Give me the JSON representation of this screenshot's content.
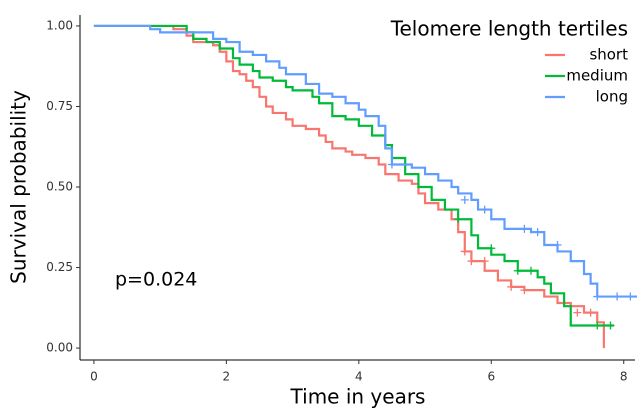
{
  "chart_data": {
    "type": "step",
    "xlabel": "Time in years",
    "ylabel": "Survival probability",
    "legend_title": "Telomere length tertiles",
    "legend_position": "top-right",
    "annotation": "p=0.024",
    "xlim": [
      -0.21,
      8.17
    ],
    "ylim": [
      -0.037,
      1.034
    ],
    "xticks": [
      0,
      2,
      4,
      6,
      8
    ],
    "yticks": [
      {
        "value": 0,
        "label": "0.00"
      },
      {
        "value": 0.25,
        "label": "0.25"
      },
      {
        "value": 0.5,
        "label": "0.50"
      },
      {
        "value": 0.75,
        "label": "0.75"
      },
      {
        "value": 1,
        "label": "1.00"
      }
    ],
    "series": [
      {
        "name": "short",
        "color": "#F8766D",
        "x": [
          0,
          1.2,
          1.4,
          1.5,
          1.8,
          1.9,
          2.0,
          2.1,
          2.2,
          2.3,
          2.4,
          2.5,
          2.6,
          2.7,
          2.9,
          3.0,
          3.2,
          3.4,
          3.5,
          3.6,
          3.8,
          3.9,
          4.1,
          4.3,
          4.4,
          4.6,
          4.8,
          4.9,
          5.0,
          5.2,
          5.4,
          5.5,
          5.6,
          5.7,
          5.9,
          6.1,
          6.3,
          6.5,
          6.8,
          7.0,
          7.2,
          7.4,
          7.6,
          7.7
        ],
        "values": [
          1.0,
          0.99,
          0.97,
          0.95,
          0.94,
          0.92,
          0.89,
          0.86,
          0.85,
          0.83,
          0.81,
          0.78,
          0.75,
          0.73,
          0.71,
          0.69,
          0.68,
          0.66,
          0.64,
          0.62,
          0.61,
          0.6,
          0.59,
          0.57,
          0.54,
          0.52,
          0.51,
          0.48,
          0.45,
          0.43,
          0.4,
          0.36,
          0.3,
          0.27,
          0.24,
          0.21,
          0.19,
          0.18,
          0.16,
          0.14,
          0.13,
          0.11,
          0.08,
          0.0
        ],
        "censored": {
          "x": [
            5.6,
            5.7,
            5.9,
            6.3,
            6.5,
            7.3,
            7.5
          ],
          "values": [
            0.3,
            0.27,
            0.27,
            0.19,
            0.18,
            0.11,
            0.11
          ]
        }
      },
      {
        "name": "medium",
        "color": "#00BA38",
        "x": [
          0,
          1.4,
          1.5,
          1.7,
          1.9,
          2.1,
          2.2,
          2.4,
          2.5,
          2.7,
          2.9,
          3.0,
          3.3,
          3.4,
          3.6,
          3.8,
          4.0,
          4.2,
          4.4,
          4.5,
          4.7,
          4.9,
          5.1,
          5.3,
          5.5,
          5.7,
          5.8,
          6.0,
          6.2,
          6.4,
          6.7,
          6.8,
          6.9,
          7.1,
          7.2,
          7.85
        ],
        "values": [
          1.0,
          0.98,
          0.96,
          0.95,
          0.93,
          0.9,
          0.88,
          0.86,
          0.84,
          0.83,
          0.81,
          0.8,
          0.78,
          0.76,
          0.72,
          0.71,
          0.69,
          0.66,
          0.63,
          0.59,
          0.54,
          0.5,
          0.46,
          0.43,
          0.4,
          0.35,
          0.31,
          0.29,
          0.27,
          0.24,
          0.22,
          0.2,
          0.17,
          0.13,
          0.07,
          0.07
        ],
        "censored": {
          "x": [
            5.5,
            6.0,
            6.4,
            6.6,
            7.6,
            7.8
          ],
          "values": [
            0.4,
            0.31,
            0.24,
            0.24,
            0.07,
            0.07
          ]
        }
      },
      {
        "name": "long",
        "color": "#619CFF",
        "x": [
          0,
          0.85,
          1.0,
          1.8,
          2.0,
          2.2,
          2.4,
          2.6,
          2.8,
          2.9,
          3.2,
          3.4,
          3.6,
          3.8,
          4.0,
          4.1,
          4.3,
          4.4,
          4.5,
          4.8,
          5.0,
          5.2,
          5.4,
          5.5,
          5.7,
          5.8,
          6.0,
          6.2,
          6.6,
          6.8,
          7.0,
          7.2,
          7.4,
          7.5,
          7.6,
          8.2
        ],
        "values": [
          1.0,
          0.99,
          0.98,
          0.96,
          0.95,
          0.92,
          0.91,
          0.89,
          0.87,
          0.85,
          0.82,
          0.79,
          0.78,
          0.76,
          0.74,
          0.72,
          0.69,
          0.62,
          0.57,
          0.56,
          0.54,
          0.52,
          0.5,
          0.48,
          0.46,
          0.43,
          0.4,
          0.37,
          0.36,
          0.32,
          0.3,
          0.27,
          0.23,
          0.2,
          0.16,
          0.16
        ],
        "censored": {
          "x": [
            4.5,
            5.6,
            5.9,
            6.5,
            6.7,
            7.0,
            7.6,
            7.9,
            8.1
          ],
          "values": [
            0.57,
            0.46,
            0.43,
            0.37,
            0.36,
            0.32,
            0.16,
            0.16,
            0.16
          ]
        }
      }
    ]
  }
}
